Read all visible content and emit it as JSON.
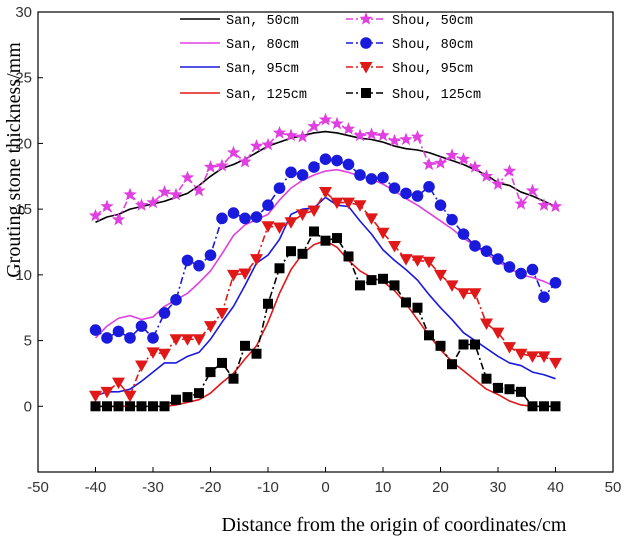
{
  "chart_data": {
    "type": "line",
    "xlabel": "Distance from the origin of coordinates/cm",
    "ylabel": "Grouting stone thickness/mm",
    "xlim": [
      -50,
      50
    ],
    "ylim": [
      -5,
      30
    ],
    "xticks": [
      -50,
      -40,
      -30,
      -20,
      -10,
      0,
      10,
      20,
      30,
      40,
      50
    ],
    "yticks": [
      0,
      5,
      10,
      15,
      20,
      25,
      30
    ],
    "xtick_labels": [
      "-50",
      "-40",
      "-30",
      "-20",
      "-10",
      "0",
      "10",
      "20",
      "30",
      "40",
      "50"
    ],
    "ytick_labels": [
      "0",
      "5",
      "10",
      "15",
      "20",
      "25",
      "30"
    ],
    "legend_position": "top-left",
    "series": [
      {
        "name": "San, 50cm",
        "style": "line",
        "color": "#000000",
        "x": [
          -40,
          -38,
          -36,
          -34,
          -32,
          -30,
          -28,
          -26,
          -24,
          -22,
          -20,
          -18,
          -16,
          -14,
          -12,
          -10,
          -8,
          -6,
          -4,
          -2,
          0,
          2,
          4,
          6,
          8,
          10,
          12,
          14,
          16,
          18,
          20,
          22,
          24,
          26,
          28,
          30,
          32,
          34,
          36,
          38,
          40
        ],
        "values": [
          14,
          14.4,
          14.6,
          15,
          15.2,
          15.4,
          15.6,
          15.9,
          16.2,
          16.8,
          17.5,
          18.1,
          18.4,
          18.8,
          19.3,
          19.8,
          20.1,
          20.4,
          20.6,
          20.8,
          20.9,
          20.8,
          20.6,
          20.4,
          20.3,
          20.1,
          19.8,
          19.6,
          19.5,
          19.3,
          19,
          18.7,
          18.4,
          18,
          17.6,
          17,
          16.8,
          16.3,
          16,
          15.6,
          15.2
        ]
      },
      {
        "name": "San, 80cm",
        "style": "line",
        "color": "#e040e0",
        "x": [
          -40,
          -38,
          -36,
          -34,
          -32,
          -30,
          -28,
          -26,
          -24,
          -22,
          -20,
          -18,
          -16,
          -14,
          -12,
          -10,
          -8,
          -6,
          -4,
          -2,
          0,
          2,
          4,
          6,
          8,
          10,
          12,
          14,
          16,
          18,
          20,
          22,
          24,
          26,
          28,
          30,
          32,
          34,
          36,
          38,
          40
        ],
        "values": [
          5.2,
          6.1,
          6.7,
          6.9,
          6.6,
          6.8,
          7.6,
          8.1,
          8.6,
          9.4,
          10.3,
          11.6,
          13,
          13.8,
          14.2,
          14.6,
          15.7,
          16.6,
          17.2,
          17.6,
          17.9,
          18,
          17.8,
          17.5,
          17.3,
          16.9,
          16.4,
          15.8,
          15.3,
          14.7,
          14.1,
          13.5,
          12.8,
          12.2,
          11.6,
          11,
          10.5,
          10,
          9.8,
          9.5,
          9.1
        ]
      },
      {
        "name": "San, 95cm",
        "style": "line",
        "color": "#1a1adc",
        "x": [
          -40,
          -38,
          -36,
          -34,
          -32,
          -30,
          -28,
          -26,
          -24,
          -22,
          -20,
          -18,
          -16,
          -14,
          -12,
          -10,
          -8,
          -6,
          -4,
          -2,
          0,
          2,
          4,
          6,
          8,
          10,
          12,
          14,
          16,
          18,
          20,
          22,
          24,
          26,
          28,
          30,
          32,
          34,
          36,
          38,
          40
        ],
        "values": [
          0.8,
          1.1,
          1.1,
          1.3,
          1.9,
          2.6,
          3.3,
          3.3,
          3.8,
          4.1,
          5.1,
          6.4,
          7.6,
          9.2,
          10.9,
          11.5,
          12.7,
          14.6,
          15,
          15.1,
          15.9,
          15.3,
          15.2,
          14.1,
          13.1,
          11.9,
          11.1,
          10.4,
          9.6,
          8.5,
          7.5,
          6.6,
          5.6,
          5,
          4.4,
          3.8,
          3.3,
          3.1,
          2.6,
          2.4,
          2.1
        ]
      },
      {
        "name": "San, 125cm",
        "style": "line",
        "color": "#e01818",
        "x": [
          -40,
          -38,
          -36,
          -34,
          -32,
          -30,
          -28,
          -26,
          -24,
          -22,
          -20,
          -18,
          -16,
          -14,
          -12,
          -10,
          -8,
          -6,
          -4,
          -2,
          0,
          2,
          4,
          6,
          8,
          10,
          12,
          14,
          16,
          18,
          20,
          22,
          24,
          26,
          28,
          30,
          32,
          34,
          36,
          38,
          40
        ],
        "values": [
          0,
          0,
          0,
          0,
          0,
          0,
          0,
          0.1,
          0.3,
          0.5,
          1,
          1.8,
          2.5,
          3.6,
          4.6,
          6.4,
          8.6,
          10.4,
          11.6,
          12.3,
          12.6,
          12.1,
          11.1,
          10.3,
          9.8,
          9.5,
          8.8,
          7.8,
          6.6,
          5.4,
          4.3,
          3.4,
          2.7,
          2,
          1.3,
          0.9,
          0.4,
          0.1,
          0,
          0,
          0
        ]
      },
      {
        "name": "Shou, 50cm",
        "style": "dash-dot",
        "marker": "star",
        "color": "#e040e0",
        "x": [
          -40,
          -38,
          -36,
          -34,
          -32,
          -30,
          -28,
          -26,
          -24,
          -22,
          -20,
          -18,
          -16,
          -14,
          -12,
          -10,
          -8,
          -6,
          -4,
          -2,
          0,
          2,
          4,
          6,
          8,
          10,
          12,
          14,
          16,
          18,
          20,
          22,
          24,
          26,
          28,
          30,
          32,
          34,
          36,
          38,
          40
        ],
        "values": [
          14.5,
          15.2,
          14.2,
          16.1,
          15.3,
          15.5,
          16.3,
          16.1,
          17.4,
          16.4,
          18.2,
          18.3,
          19.3,
          18.6,
          19.8,
          19.9,
          20.8,
          20.6,
          20.5,
          21.3,
          21.8,
          21.5,
          21.1,
          20.6,
          20.7,
          20.6,
          20.2,
          20.3,
          20.5,
          18.4,
          18.5,
          19.1,
          18.8,
          18.2,
          17.5,
          16.9,
          17.9,
          15.4,
          16.4,
          15.3,
          15.2
        ]
      },
      {
        "name": "Shou, 80cm",
        "style": "dash-dot",
        "marker": "circle",
        "color": "#1a1adc",
        "x": [
          -40,
          -38,
          -36,
          -34,
          -32,
          -30,
          -28,
          -26,
          -24,
          -22,
          -20,
          -18,
          -16,
          -14,
          -12,
          -10,
          -8,
          -6,
          -4,
          -2,
          0,
          2,
          4,
          6,
          8,
          10,
          12,
          14,
          16,
          18,
          20,
          22,
          24,
          26,
          28,
          30,
          32,
          34,
          36,
          38,
          40
        ],
        "values": [
          5.8,
          5.2,
          5.7,
          5.2,
          6.1,
          5.2,
          7.1,
          8.1,
          11.1,
          10.7,
          11.5,
          14.3,
          14.7,
          14.3,
          14.4,
          15.3,
          16.6,
          17.8,
          17.6,
          18.2,
          18.8,
          18.7,
          18.4,
          17.6,
          17.3,
          17.4,
          16.6,
          16.2,
          16,
          16.7,
          15.3,
          14.2,
          13.1,
          12.2,
          11.8,
          11.2,
          10.6,
          10.1,
          10.4,
          8.3,
          9.4
        ]
      },
      {
        "name": "Shou, 95cm",
        "style": "dash-dot",
        "marker": "triangle-down",
        "color": "#e01818",
        "x": [
          -40,
          -38,
          -36,
          -34,
          -32,
          -30,
          -28,
          -26,
          -24,
          -22,
          -20,
          -18,
          -16,
          -14,
          -12,
          -10,
          -8,
          -6,
          -4,
          -2,
          0,
          2,
          4,
          6,
          8,
          10,
          12,
          14,
          16,
          18,
          20,
          22,
          24,
          26,
          28,
          30,
          32,
          34,
          36,
          38,
          40
        ],
        "values": [
          0.8,
          1.1,
          1.8,
          0.8,
          3.1,
          4.1,
          4,
          5.1,
          5.1,
          5.1,
          6.1,
          7.1,
          10,
          10.1,
          11.2,
          13.7,
          13.6,
          14,
          14.6,
          14.9,
          16.3,
          15.5,
          15.5,
          15.3,
          14.3,
          13.2,
          12.2,
          11.2,
          11.1,
          11,
          10,
          9.2,
          8.6,
          8.6,
          6.3,
          5.6,
          4.5,
          4,
          3.8,
          3.8,
          3.3
        ]
      },
      {
        "name": "Shou, 125cm",
        "style": "dash-dot",
        "marker": "square",
        "color": "#000000",
        "x": [
          -40,
          -38,
          -36,
          -34,
          -32,
          -30,
          -28,
          -26,
          -24,
          -22,
          -20,
          -18,
          -16,
          -14,
          -12,
          -10,
          -8,
          -6,
          -4,
          -2,
          0,
          2,
          4,
          6,
          8,
          10,
          12,
          14,
          16,
          18,
          20,
          22,
          24,
          26,
          28,
          30,
          32,
          34,
          36,
          38,
          40
        ],
        "values": [
          0,
          0,
          0,
          0,
          0,
          0,
          0,
          0.5,
          0.7,
          1,
          2.6,
          3.3,
          2.1,
          4.6,
          4,
          7.8,
          10.5,
          11.8,
          11.6,
          13.3,
          12.6,
          12.8,
          11.4,
          9.2,
          9.6,
          9.7,
          9.2,
          7.9,
          7.5,
          5.4,
          4.6,
          3.2,
          4.7,
          4.7,
          2.1,
          1.4,
          1.3,
          1.1,
          0,
          0,
          0
        ]
      }
    ]
  }
}
